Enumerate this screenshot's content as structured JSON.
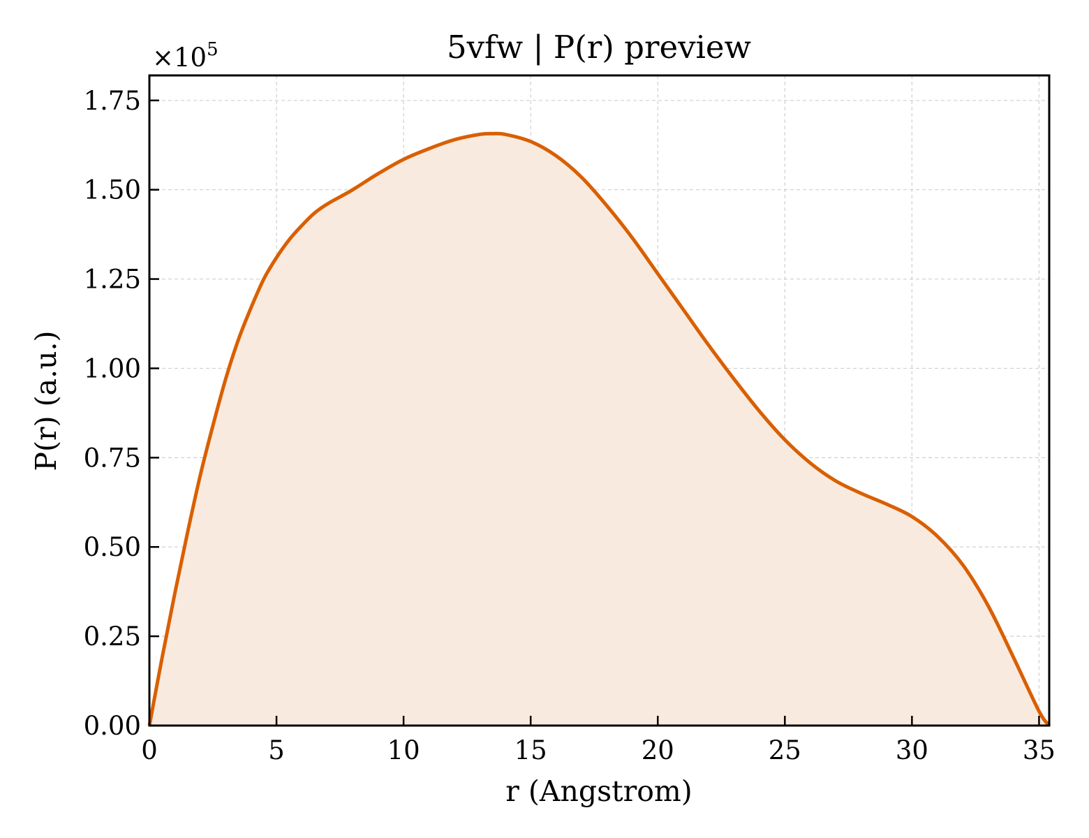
{
  "chart_data": {
    "type": "area",
    "title": "5vfw | P(r) preview",
    "xlabel": "r (Angstrom)",
    "ylabel": "P(r) (a.u.)",
    "y_multiplier": "×10",
    "y_multiplier_exp": "5",
    "xlim": [
      0,
      35.4
    ],
    "ylim": [
      0,
      1.82
    ],
    "x_ticks": [
      0,
      5,
      10,
      15,
      20,
      25,
      30,
      35
    ],
    "x_tick_labels": [
      "0",
      "5",
      "10",
      "15",
      "20",
      "25",
      "30",
      "35"
    ],
    "y_ticks": [
      0,
      0.25,
      0.5,
      0.75,
      1.0,
      1.25,
      1.5,
      1.75
    ],
    "y_tick_labels": [
      "0.00",
      "0.25",
      "0.50",
      "0.75",
      "1.00",
      "1.25",
      "1.50",
      "1.75"
    ],
    "grid": true,
    "line_color": "#d95f02",
    "fill_color": "#f9eadf",
    "series": [
      {
        "x": [
          0,
          0.5,
          1,
          1.5,
          2,
          2.5,
          3,
          3.5,
          4,
          4.5,
          5,
          5.5,
          6,
          6.5,
          7,
          7.5,
          8,
          9,
          10,
          11,
          12,
          13,
          13.5,
          14,
          15,
          16,
          17,
          18,
          19,
          20,
          21,
          22,
          23,
          24,
          25,
          26,
          27,
          28,
          29,
          30,
          31,
          32,
          33,
          34,
          35,
          35.4
        ],
        "y": [
          0,
          0.19,
          0.37,
          0.54,
          0.7,
          0.84,
          0.97,
          1.08,
          1.17,
          1.25,
          1.31,
          1.36,
          1.4,
          1.435,
          1.46,
          1.48,
          1.5,
          1.545,
          1.585,
          1.615,
          1.64,
          1.655,
          1.657,
          1.655,
          1.635,
          1.595,
          1.535,
          1.455,
          1.365,
          1.265,
          1.165,
          1.065,
          0.97,
          0.88,
          0.8,
          0.735,
          0.685,
          0.65,
          0.62,
          0.585,
          0.53,
          0.45,
          0.335,
          0.19,
          0.04,
          0
        ]
      }
    ]
  }
}
